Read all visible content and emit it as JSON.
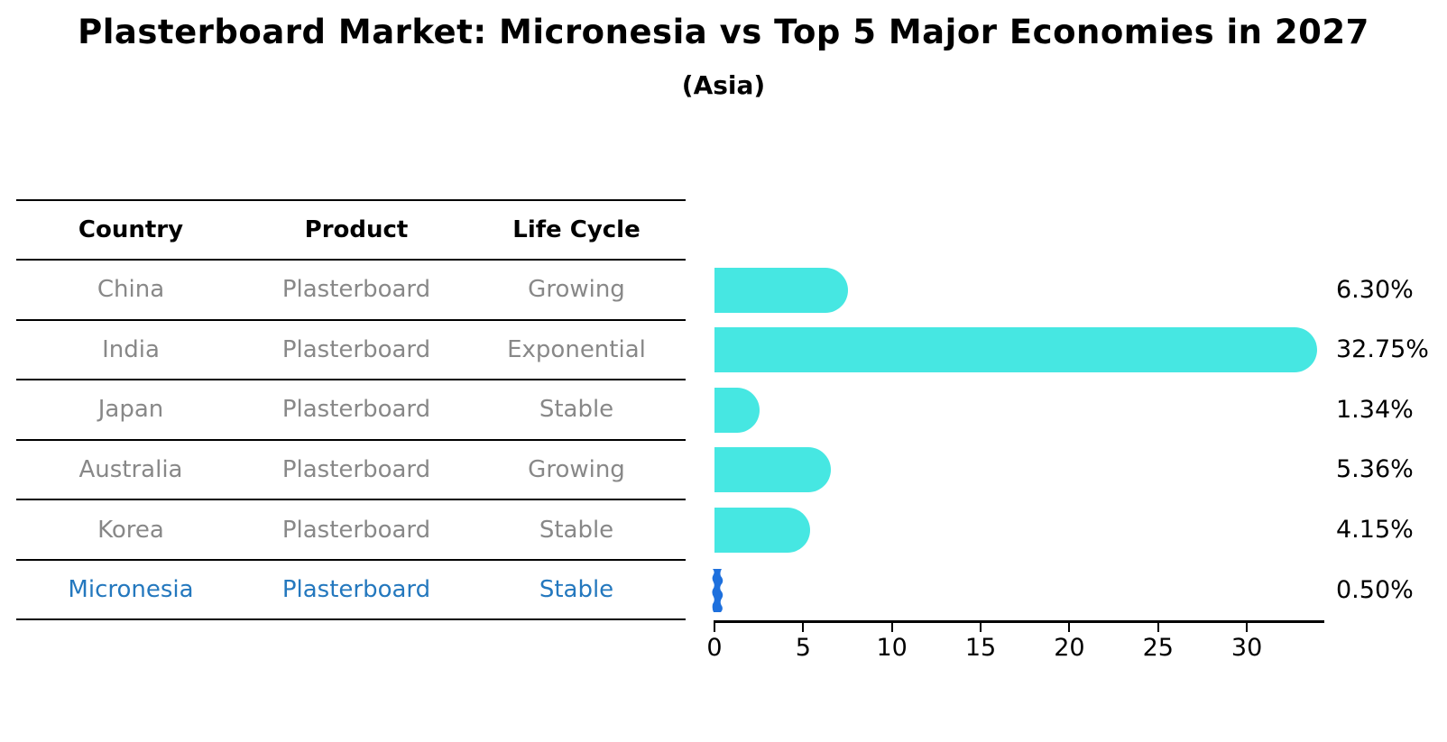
{
  "title": "Plasterboard Market: Micronesia vs Top 5 Major Economies in 2027",
  "subtitle": "(Asia)",
  "table": {
    "headers": [
      "Country",
      "Product",
      "Life Cycle"
    ],
    "rows": [
      {
        "country": "China",
        "product": "Plasterboard",
        "life_cycle": "Growing",
        "highlight": false
      },
      {
        "country": "India",
        "product": "Plasterboard",
        "life_cycle": "Exponential",
        "highlight": false
      },
      {
        "country": "Japan",
        "product": "Plasterboard",
        "life_cycle": "Stable",
        "highlight": false
      },
      {
        "country": "Australia",
        "product": "Plasterboard",
        "life_cycle": "Growing",
        "highlight": false
      },
      {
        "country": "Korea",
        "product": "Plasterboard",
        "life_cycle": "Stable",
        "highlight": false
      },
      {
        "country": "Micronesia",
        "product": "Plasterboard",
        "life_cycle": "Stable",
        "highlight": true
      }
    ]
  },
  "chart_data": {
    "type": "bar",
    "orientation": "horizontal",
    "title": "Plasterboard Market: Micronesia vs Top 5 Major Economies in 2027",
    "subtitle": "(Asia)",
    "categories": [
      "China",
      "India",
      "Japan",
      "Australia",
      "Korea",
      "Micronesia"
    ],
    "values": [
      6.3,
      32.75,
      1.34,
      5.36,
      4.15,
      0.5
    ],
    "value_labels": [
      "6.30%",
      "32.75%",
      "1.34%",
      "5.36%",
      "4.15%",
      "0.50%"
    ],
    "unit": "%",
    "x_ticks": [
      0,
      5,
      10,
      15,
      20,
      25,
      30
    ],
    "xlim": [
      0,
      34.4
    ],
    "grid": false,
    "legend": null,
    "highlight_index": 5
  },
  "colors": {
    "bar": "#46e7e2",
    "highlight_bar": "#1e70dd",
    "highlight_text": "#2478be",
    "cell_text": "#888888",
    "header_text": "#000000",
    "axis": "#000000"
  }
}
